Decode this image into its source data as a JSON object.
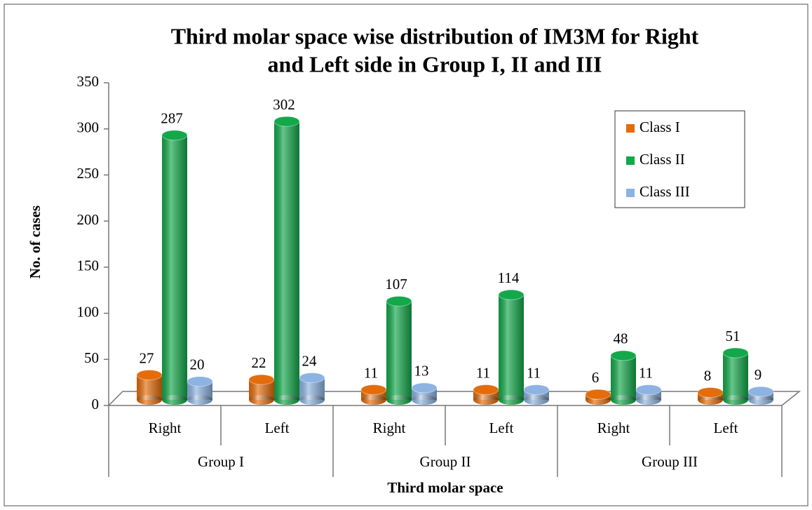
{
  "chart_data": {
    "type": "bar3d",
    "title": [
      "Third molar space  wise distribution of IM3M for Right",
      "and Left side  in Group I, II and III"
    ],
    "x_label": "Third molar space",
    "y_label": "No. of cases",
    "categories": [
      "Right",
      "Left",
      "Right",
      "Left",
      "Right",
      "Left"
    ],
    "category_groups": [
      "Group I",
      "Group II",
      "Group III"
    ],
    "series": [
      {
        "name": "Class I",
        "color": "#e46c0a",
        "values": [
          27,
          22,
          11,
          11,
          6,
          8
        ]
      },
      {
        "name": "Class II",
        "color": "#13a84a",
        "values": [
          287,
          302,
          107,
          114,
          48,
          51
        ]
      },
      {
        "name": "Class III",
        "color": "#8db3e2",
        "values": [
          20,
          24,
          13,
          11,
          11,
          9
        ]
      }
    ],
    "ylim": [
      0,
      350
    ],
    "yticks": [
      0,
      50,
      100,
      150,
      200,
      250,
      300,
      350
    ],
    "legend": "upper right"
  }
}
